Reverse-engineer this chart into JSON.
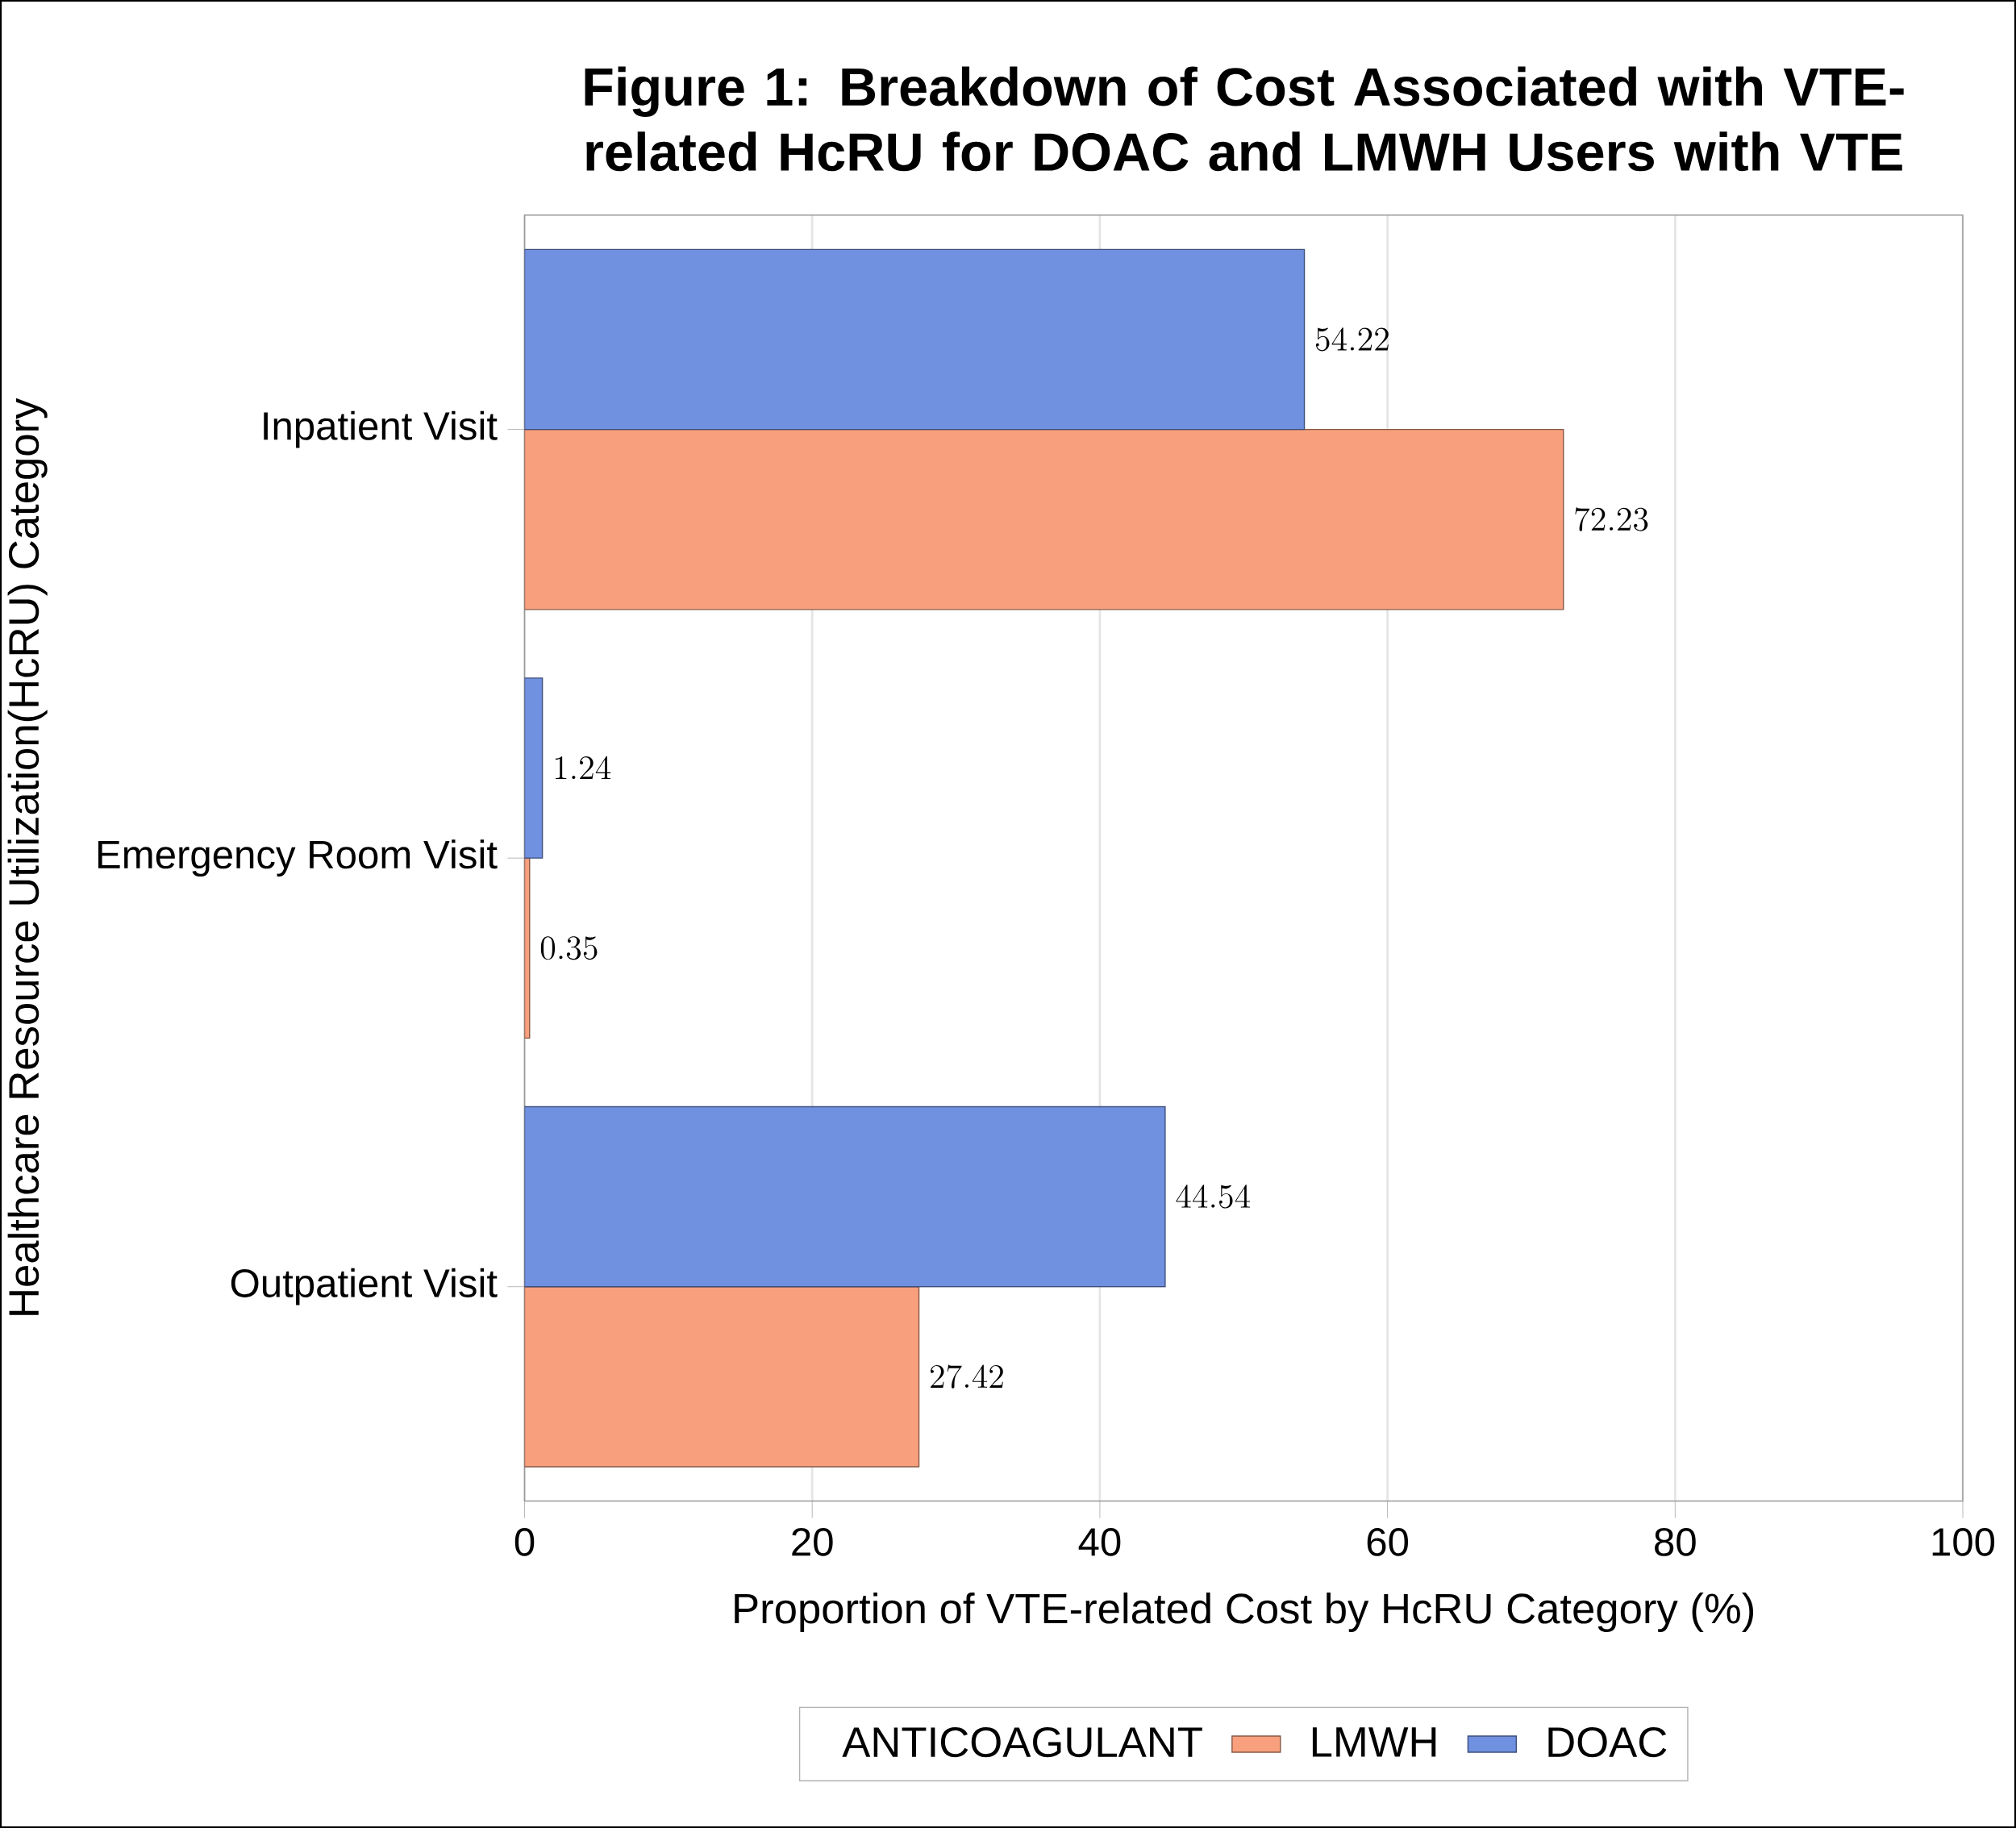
{
  "chart_data": {
    "type": "bar",
    "orientation": "horizontal",
    "title": "Figure 1: Breakdown of Cost Associated with VTE-related HcRU for DOAC and LMWH Users with VTE",
    "xlabel": "Proportion of VTE-related Cost by HcRU Category (%)",
    "ylabel": "Healthcare Resource Utilization(HcRU) Category",
    "legend_title": "ANTICOAGULANT",
    "categories": [
      "Inpatient Visit",
      "Emergency Room Visit",
      "Outpatient Visit"
    ],
    "series": [
      {
        "name": "LMWH",
        "color": "#f8a07e",
        "values": [
          72.23,
          0.35,
          27.42
        ]
      },
      {
        "name": "DOAC",
        "color": "#7090e0",
        "values": [
          54.22,
          1.24,
          44.54
        ]
      }
    ],
    "xlim": [
      0,
      100
    ],
    "xticks": [
      0,
      20,
      40,
      60,
      80,
      100
    ],
    "grid": "x",
    "legend": "bottom",
    "data_labels": true
  }
}
